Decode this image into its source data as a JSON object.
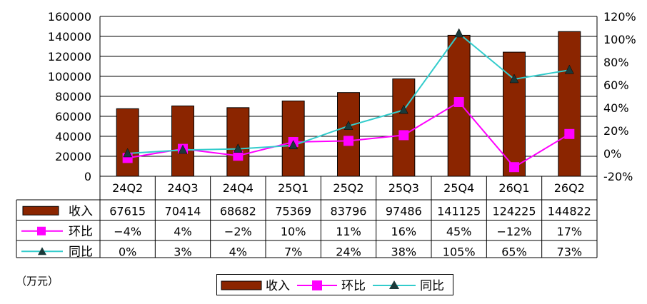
{
  "colors": {
    "revenue": "#8B2500",
    "qoq": "#FF00FF",
    "yoy": "#33CCCC",
    "marker_yoy": "#1A3A3A"
  },
  "chart_data": {
    "type": "bar",
    "categories": [
      "24Q2",
      "24Q3",
      "24Q4",
      "25Q1",
      "25Q2",
      "25Q3",
      "25Q4",
      "26Q1",
      "26Q2"
    ],
    "series": [
      {
        "name": "收入",
        "kind": "bar",
        "axis": "left",
        "values": [
          67615,
          70414,
          68682,
          75369,
          83796,
          97486,
          141125,
          124225,
          144822
        ],
        "labels": [
          "67615",
          "70414",
          "68682",
          "75369",
          "83796",
          "97486",
          "141125",
          "124225",
          "144822"
        ]
      },
      {
        "name": "环比",
        "kind": "line",
        "axis": "right",
        "marker": "square",
        "values": [
          -4,
          4,
          -2,
          10,
          11,
          16,
          45,
          -12,
          17
        ],
        "labels": [
          "−4%",
          "4%",
          "−2%",
          "10%",
          "11%",
          "16%",
          "45%",
          "−12%",
          "17%"
        ]
      },
      {
        "name": "同比",
        "kind": "line",
        "axis": "right",
        "marker": "triangle",
        "values": [
          0,
          3,
          4,
          7,
          24,
          38,
          105,
          65,
          73
        ],
        "labels": [
          "0%",
          "3%",
          "4%",
          "7%",
          "24%",
          "38%",
          "105%",
          "65%",
          "73%"
        ]
      }
    ],
    "left_axis": {
      "ylim": [
        0,
        160000
      ],
      "ticks": [
        "0",
        "20000",
        "40000",
        "60000",
        "80000",
        "100000",
        "120000",
        "140000",
        "160000"
      ]
    },
    "right_axis": {
      "ylim": [
        -20,
        120
      ],
      "ticks": [
        "-20%",
        "0%",
        "20%",
        "40%",
        "60%",
        "80%",
        "100%",
        "120%"
      ]
    },
    "grid": true,
    "data_table": true,
    "legend_position": "bottom-center"
  },
  "unit_label": "（万元）"
}
